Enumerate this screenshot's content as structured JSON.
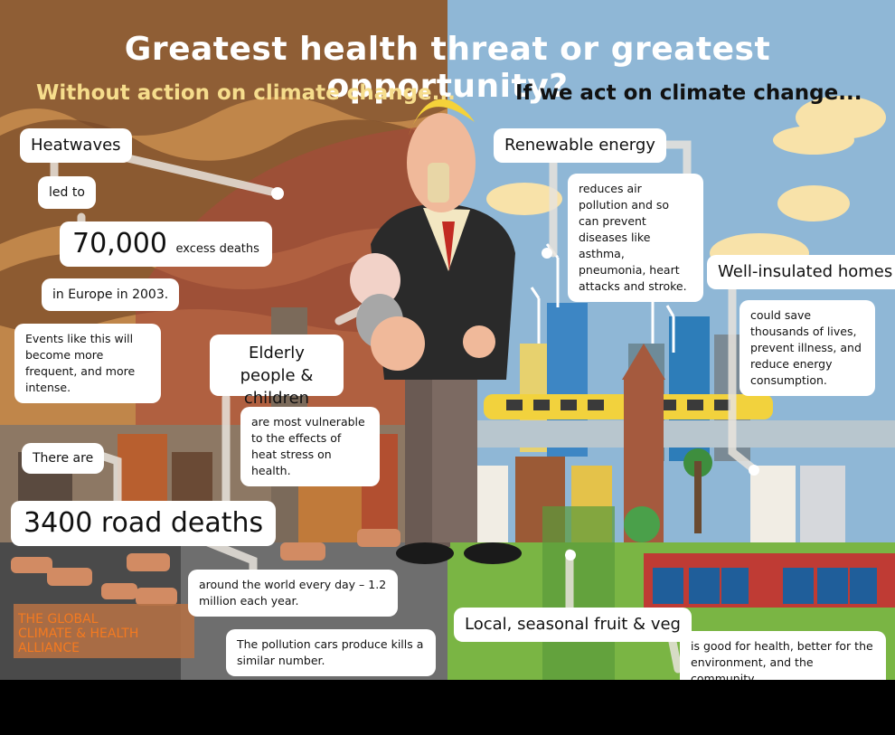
{
  "header": {
    "title": "Greatest health threat or greatest opportunity?",
    "subtitle_left": "Without action on climate change...",
    "subtitle_right": "If we act on climate change..."
  },
  "left": {
    "heatwaves": "Heatwaves",
    "led_to": "led to",
    "excess_number": "70,000",
    "excess_suffix": "excess deaths",
    "europe": "in Europe in 2003.",
    "events": "Events like this will become more frequent, and more intense.",
    "elderly": "Elderly people & children",
    "vulnerable": "are most vulnerable to the effects of heat stress on health.",
    "there_are": "There are",
    "road_deaths": "3400 road deaths",
    "around_world": "around the world every day – 1.2 million each year.",
    "pollution": "The pollution cars produce kills a similar number."
  },
  "right": {
    "renewable": "Renewable energy",
    "renewable_text": "reduces air pollution and so can prevent diseases like asthma, pneumonia, heart attacks and stroke.",
    "insulated": "Well-insulated homes",
    "insulated_text": "could save thousands of lives, prevent illness, and reduce energy consumption.",
    "fruit": "Local, seasonal fruit & veg",
    "fruit_text": "is good for health, better for the environment, and the community."
  },
  "logo": {
    "line1": "THE GLOBAL",
    "line2": "CLIMATE & HEALTH",
    "line3": "ALLIANCE"
  },
  "colors": {
    "left_bg": "#c0864a",
    "right_sky": "#8fb7d6",
    "title": "#ffffff",
    "subtitle_left": "#f6dd8c",
    "logo": "#f47a20"
  }
}
